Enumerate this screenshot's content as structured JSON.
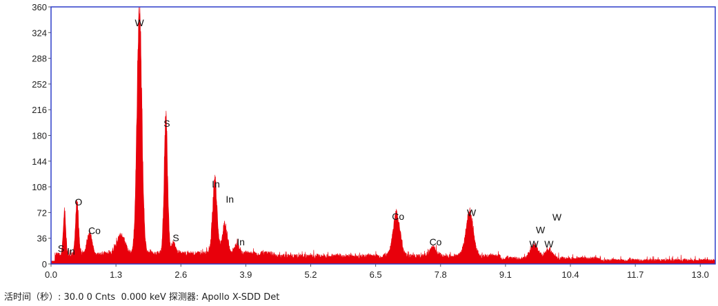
{
  "chart_data": {
    "type": "area",
    "title": "",
    "xlabel": "",
    "ylabel": "",
    "xlim": [
      0.0,
      13.3
    ],
    "ylim": [
      0,
      360
    ],
    "x_ticks": [
      0.0,
      1.3,
      2.6,
      3.9,
      5.2,
      6.5,
      7.8,
      9.1,
      10.4,
      11.7,
      13.0
    ],
    "x_tick_labels": [
      "0.0",
      "1.3",
      "2.6",
      "3.9",
      "5.2",
      "6.5",
      "7.8",
      "9.1",
      "10.4",
      "11.7",
      "13.0"
    ],
    "y_ticks": [
      0,
      36,
      72,
      108,
      144,
      180,
      216,
      252,
      288,
      324,
      360
    ],
    "y_tick_labels": [
      "0",
      "36",
      "72",
      "108",
      "144",
      "180",
      "216",
      "252",
      "288",
      "324",
      "360"
    ],
    "series_color": "#e8000b",
    "frame_color": "#2b3cc8",
    "peaks": [
      {
        "x": 0.27,
        "y": 60,
        "width": 0.025
      },
      {
        "x": 0.52,
        "y": 74,
        "width": 0.03
      },
      {
        "x": 0.77,
        "y": 30,
        "width": 0.05
      },
      {
        "x": 1.4,
        "y": 25,
        "width": 0.08
      },
      {
        "x": 1.77,
        "y": 325,
        "width": 0.05
      },
      {
        "x": 2.3,
        "y": 188,
        "width": 0.035
      },
      {
        "x": 2.45,
        "y": 14,
        "width": 0.04
      },
      {
        "x": 3.28,
        "y": 102,
        "width": 0.045
      },
      {
        "x": 3.48,
        "y": 40,
        "width": 0.05
      },
      {
        "x": 3.72,
        "y": 14,
        "width": 0.05
      },
      {
        "x": 6.92,
        "y": 60,
        "width": 0.07
      },
      {
        "x": 7.65,
        "y": 12,
        "width": 0.07
      },
      {
        "x": 8.38,
        "y": 60,
        "width": 0.075
      },
      {
        "x": 9.68,
        "y": 18,
        "width": 0.08
      },
      {
        "x": 9.97,
        "y": 12,
        "width": 0.07
      }
    ],
    "annotations": [
      {
        "text": "W",
        "x": 1.77,
        "y": 333
      },
      {
        "text": "S",
        "x": 2.32,
        "y": 192
      },
      {
        "text": "S",
        "x": 2.5,
        "y": 32
      },
      {
        "text": "In",
        "x": 3.3,
        "y": 107
      },
      {
        "text": "In",
        "x": 3.58,
        "y": 86
      },
      {
        "text": "In",
        "x": 3.8,
        "y": 26
      },
      {
        "text": "O",
        "x": 0.55,
        "y": 82
      },
      {
        "text": "Co",
        "x": 0.87,
        "y": 42
      },
      {
        "text": "S",
        "x": 0.2,
        "y": 17
      },
      {
        "text": "In",
        "x": 0.4,
        "y": 13
      },
      {
        "text": "Co",
        "x": 6.95,
        "y": 62
      },
      {
        "text": "Co",
        "x": 7.7,
        "y": 26
      },
      {
        "text": "W",
        "x": 8.42,
        "y": 67
      },
      {
        "text": "W",
        "x": 9.8,
        "y": 43
      },
      {
        "text": "W",
        "x": 10.13,
        "y": 61
      },
      {
        "text": "W",
        "x": 9.67,
        "y": 23
      },
      {
        "text": "W",
        "x": 9.97,
        "y": 23
      }
    ]
  },
  "status_bar": {
    "live_time_label": "活时间（秒）: ",
    "live_time_value": "30.0",
    "counts_value": "0 Cnts",
    "energy_value": "0.000 keV",
    "detector_label": "探测器: ",
    "detector_value": "Apollo X-SDD Det"
  }
}
